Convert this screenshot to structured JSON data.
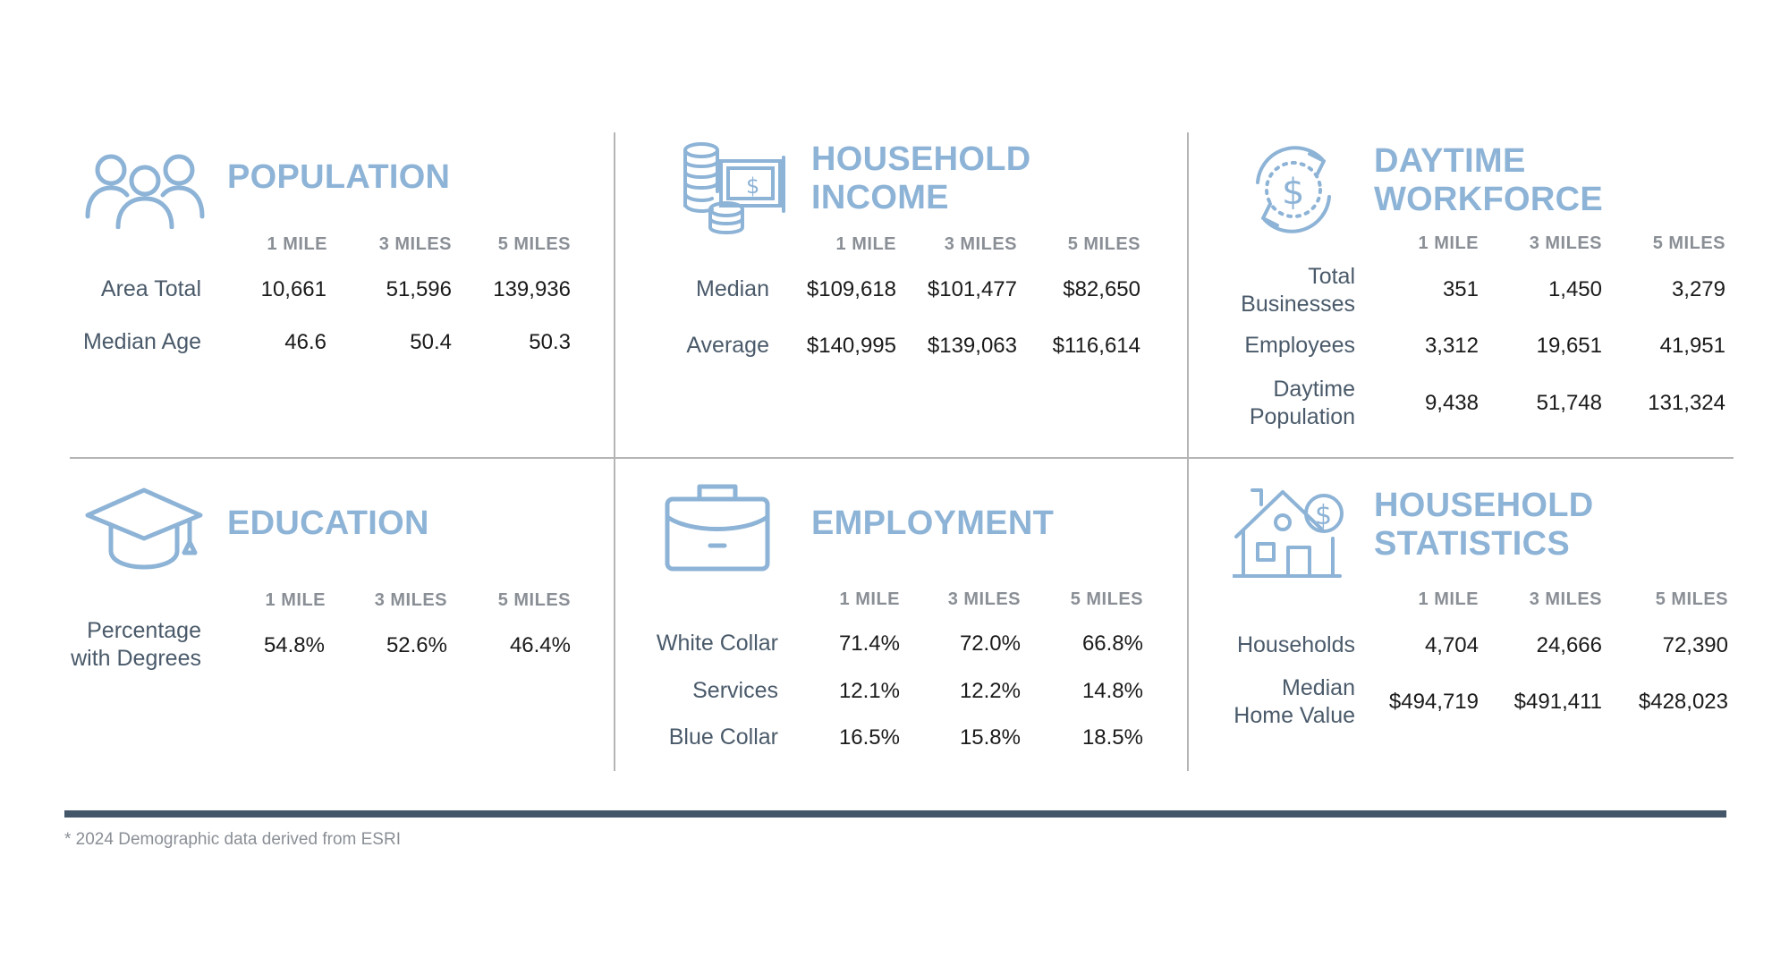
{
  "colors": {
    "accent": "#8db3d6",
    "label": "#4a5a6a",
    "header": "#8a8f96",
    "bar": "#44566a"
  },
  "columns": [
    "1 MILE",
    "3 MILES",
    "5 MILES"
  ],
  "population": {
    "title": "POPULATION",
    "icon": "people-icon",
    "rows": [
      {
        "label": "Area Total",
        "values": [
          "10,661",
          "51,596",
          "139,936"
        ]
      },
      {
        "label": "Median Age",
        "values": [
          "46.6",
          "50.4",
          "50.3"
        ]
      }
    ]
  },
  "income": {
    "title_line1": "HOUSEHOLD",
    "title_line2": "INCOME",
    "icon": "money-stack-icon",
    "rows": [
      {
        "label": "Median",
        "values": [
          "$109,618",
          "$101,477",
          "$82,650"
        ]
      },
      {
        "label": "Average",
        "values": [
          "$140,995",
          "$139,063",
          "$116,614"
        ]
      }
    ]
  },
  "workforce": {
    "title_line1": "DAYTIME",
    "title_line2": "WORKFORCE",
    "icon": "dollar-cycle-icon",
    "rows": [
      {
        "label1": "Total",
        "label2": "Businesses",
        "values": [
          "351",
          "1,450",
          "3,279"
        ]
      },
      {
        "label": "Employees",
        "values": [
          "3,312",
          "19,651",
          "41,951"
        ]
      },
      {
        "label1": "Daytime",
        "label2": "Population",
        "values": [
          "9,438",
          "51,748",
          "131,324"
        ]
      }
    ]
  },
  "education": {
    "title": "EDUCATION",
    "icon": "graduation-cap-icon",
    "rows": [
      {
        "label1": "Percentage",
        "label2": "with Degrees",
        "values": [
          "54.8%",
          "52.6%",
          "46.4%"
        ]
      }
    ]
  },
  "employment": {
    "title": "EMPLOYMENT",
    "icon": "briefcase-icon",
    "rows": [
      {
        "label": "White Collar",
        "values": [
          "71.4%",
          "72.0%",
          "66.8%"
        ]
      },
      {
        "label": "Services",
        "values": [
          "12.1%",
          "12.2%",
          "14.8%"
        ]
      },
      {
        "label": "Blue Collar",
        "values": [
          "16.5%",
          "15.8%",
          "18.5%"
        ]
      }
    ]
  },
  "household": {
    "title_line1": "HOUSEHOLD",
    "title_line2": "STATISTICS",
    "icon": "house-dollar-icon",
    "rows": [
      {
        "label": "Households",
        "values": [
          "4,704",
          "24,666",
          "72,390"
        ]
      },
      {
        "label1": "Median",
        "label2": "Home Value",
        "values": [
          "$494,719",
          "$491,411",
          "$428,023"
        ]
      }
    ]
  },
  "footnote": "* 2024 Demographic data derived from ESRI"
}
